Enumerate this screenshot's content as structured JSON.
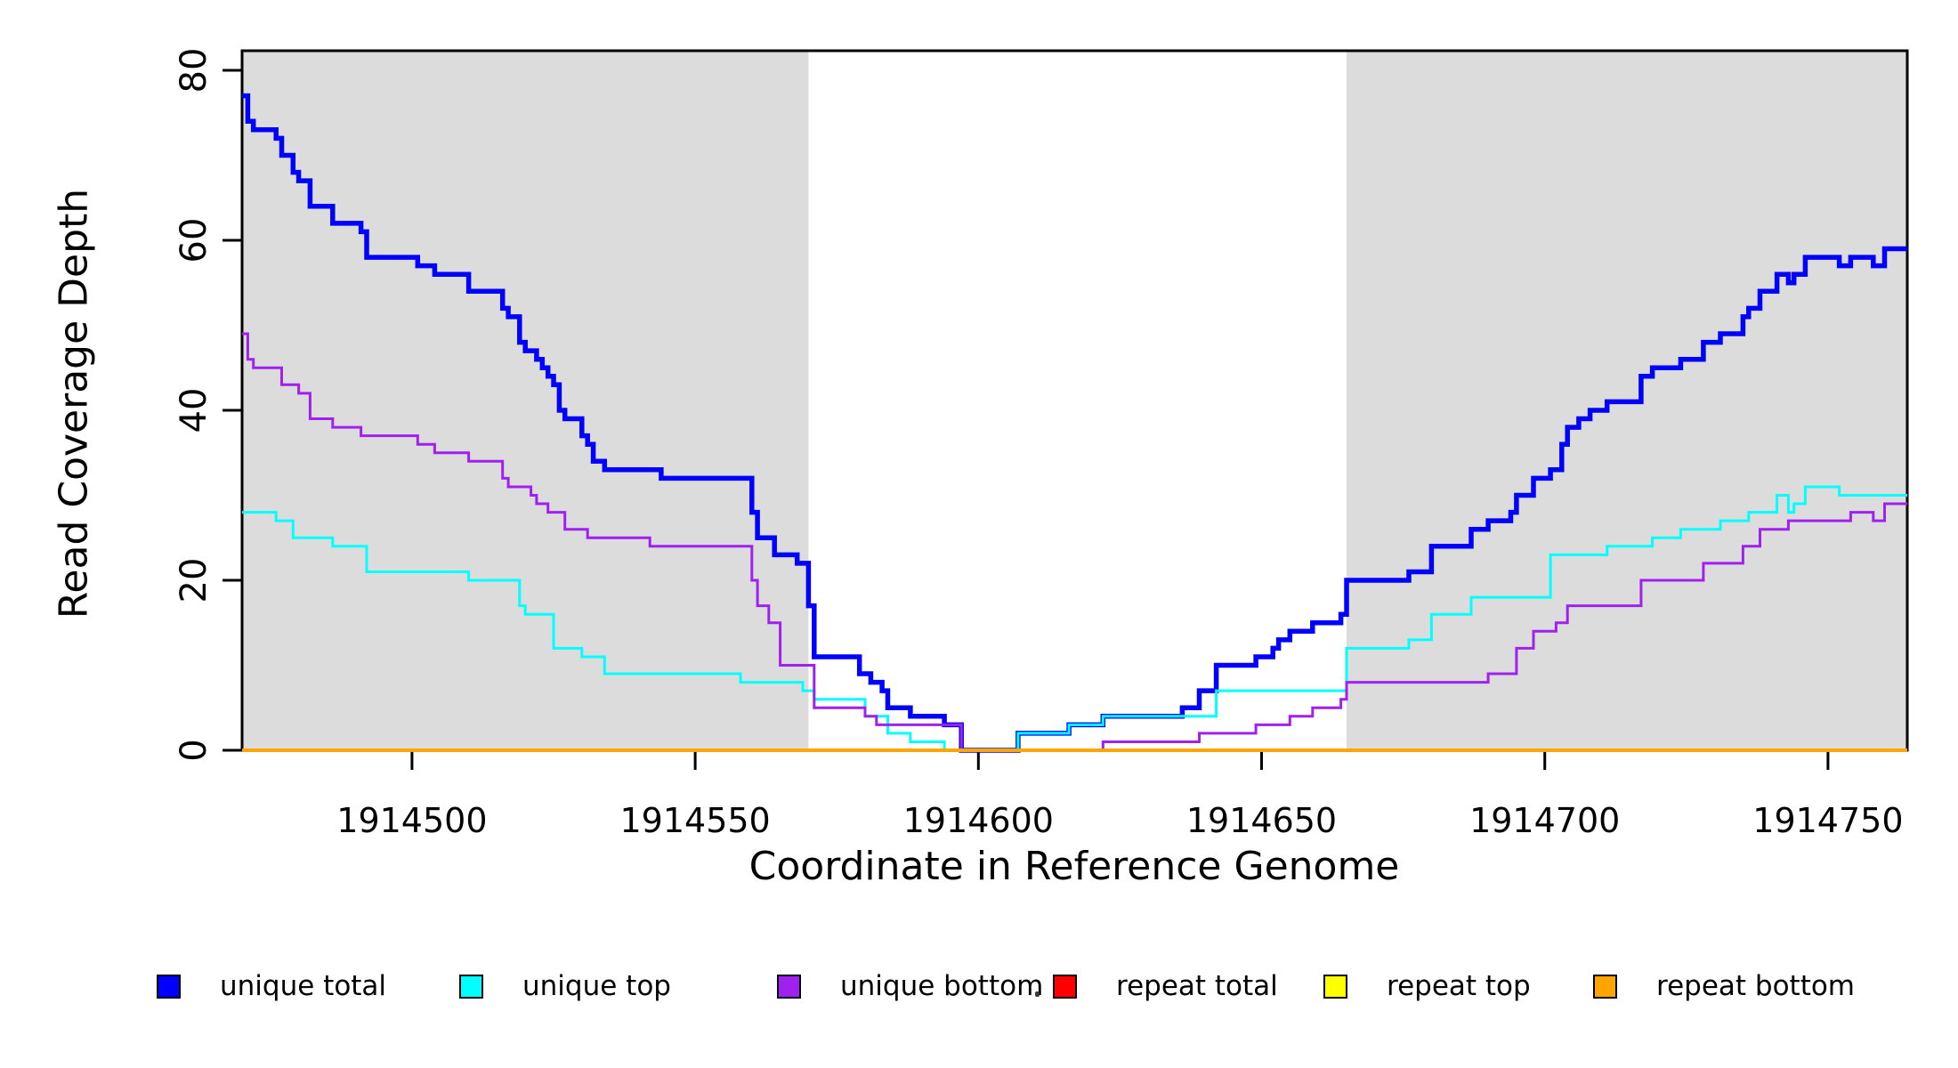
{
  "chart_data": {
    "type": "line",
    "subtype": "step-coverage",
    "title": "",
    "xlabel": "Coordinate in Reference Genome",
    "ylabel": "Read Coverage Depth",
    "xlim": [
      1914470,
      1914764
    ],
    "ylim": [
      0,
      82
    ],
    "grid": false,
    "legend_position": "bottom",
    "x_ticks": [
      1914500,
      1914550,
      1914600,
      1914650,
      1914700,
      1914750
    ],
    "x_tick_labels": [
      "1914500",
      "1914550",
      "1914600",
      "1914650",
      "1914700",
      "1914750"
    ],
    "y_ticks": [
      0,
      20,
      40,
      60,
      80
    ],
    "y_tick_labels": [
      "0",
      "20",
      "40",
      "60",
      "80"
    ],
    "background_color": "#ffffff",
    "shaded_region_color": "#dcdcdc",
    "shaded_regions": [
      {
        "x0": 1914470,
        "x1": 1914570
      },
      {
        "x0": 1914665,
        "x1": 1914764
      }
    ],
    "series": [
      {
        "name": "unique total",
        "color": "#0000ff",
        "width": 5.5,
        "steps": [
          [
            1914470,
            77
          ],
          [
            1914471,
            74
          ],
          [
            1914472,
            73
          ],
          [
            1914476,
            72
          ],
          [
            1914477,
            70
          ],
          [
            1914479,
            68
          ],
          [
            1914480,
            67
          ],
          [
            1914482,
            64
          ],
          [
            1914486,
            62
          ],
          [
            1914491,
            61
          ],
          [
            1914492,
            58
          ],
          [
            1914501,
            57
          ],
          [
            1914504,
            56
          ],
          [
            1914510,
            54
          ],
          [
            1914516,
            52
          ],
          [
            1914517,
            51
          ],
          [
            1914519,
            48
          ],
          [
            1914520,
            47
          ],
          [
            1914522,
            46
          ],
          [
            1914523,
            45
          ],
          [
            1914524,
            44
          ],
          [
            1914525,
            43
          ],
          [
            1914526,
            40
          ],
          [
            1914527,
            39
          ],
          [
            1914530,
            37
          ],
          [
            1914531,
            36
          ],
          [
            1914532,
            34
          ],
          [
            1914534,
            33
          ],
          [
            1914544,
            32
          ],
          [
            1914560,
            28
          ],
          [
            1914561,
            25
          ],
          [
            1914564,
            23
          ],
          [
            1914568,
            22
          ],
          [
            1914570,
            17
          ],
          [
            1914571,
            11
          ],
          [
            1914579,
            9
          ],
          [
            1914581,
            8
          ],
          [
            1914583,
            7
          ],
          [
            1914584,
            5
          ],
          [
            1914588,
            4
          ],
          [
            1914594,
            3
          ],
          [
            1914597,
            0
          ],
          [
            1914607,
            2
          ],
          [
            1914616,
            3
          ],
          [
            1914622,
            4
          ],
          [
            1914636,
            5
          ],
          [
            1914639,
            7
          ],
          [
            1914642,
            10
          ],
          [
            1914649,
            11
          ],
          [
            1914652,
            12
          ],
          [
            1914653,
            13
          ],
          [
            1914655,
            14
          ],
          [
            1914659,
            15
          ],
          [
            1914664,
            16
          ],
          [
            1914665,
            20
          ],
          [
            1914676,
            21
          ],
          [
            1914680,
            24
          ],
          [
            1914687,
            26
          ],
          [
            1914690,
            27
          ],
          [
            1914694,
            28
          ],
          [
            1914695,
            30
          ],
          [
            1914698,
            32
          ],
          [
            1914701,
            33
          ],
          [
            1914703,
            36
          ],
          [
            1914704,
            38
          ],
          [
            1914706,
            39
          ],
          [
            1914708,
            40
          ],
          [
            1914711,
            41
          ],
          [
            1914717,
            44
          ],
          [
            1914719,
            45
          ],
          [
            1914724,
            46
          ],
          [
            1914728,
            48
          ],
          [
            1914731,
            49
          ],
          [
            1914735,
            51
          ],
          [
            1914736,
            52
          ],
          [
            1914738,
            54
          ],
          [
            1914741,
            56
          ],
          [
            1914743,
            55
          ],
          [
            1914744,
            56
          ],
          [
            1914746,
            58
          ],
          [
            1914752,
            57
          ],
          [
            1914754,
            58
          ],
          [
            1914758,
            57
          ],
          [
            1914760,
            59
          ]
        ]
      },
      {
        "name": "unique top",
        "color": "#00ffff",
        "width": 3,
        "steps": [
          [
            1914470,
            28
          ],
          [
            1914476,
            27
          ],
          [
            1914479,
            25
          ],
          [
            1914486,
            24
          ],
          [
            1914492,
            21
          ],
          [
            1914510,
            20
          ],
          [
            1914519,
            17
          ],
          [
            1914520,
            16
          ],
          [
            1914525,
            12
          ],
          [
            1914530,
            11
          ],
          [
            1914534,
            9
          ],
          [
            1914558,
            8
          ],
          [
            1914569,
            7
          ],
          [
            1914571,
            6
          ],
          [
            1914580,
            4
          ],
          [
            1914584,
            2
          ],
          [
            1914588,
            1
          ],
          [
            1914594,
            0
          ],
          [
            1914607,
            2
          ],
          [
            1914616,
            3
          ],
          [
            1914622,
            4
          ],
          [
            1914642,
            7
          ],
          [
            1914665,
            12
          ],
          [
            1914676,
            13
          ],
          [
            1914680,
            16
          ],
          [
            1914687,
            18
          ],
          [
            1914701,
            23
          ],
          [
            1914711,
            24
          ],
          [
            1914719,
            25
          ],
          [
            1914724,
            26
          ],
          [
            1914731,
            27
          ],
          [
            1914736,
            28
          ],
          [
            1914741,
            30
          ],
          [
            1914743,
            28
          ],
          [
            1914744,
            29
          ],
          [
            1914746,
            31
          ],
          [
            1914752,
            30
          ]
        ]
      },
      {
        "name": "unique bottom",
        "color": "#a020f0",
        "width": 3,
        "steps": [
          [
            1914470,
            49
          ],
          [
            1914471,
            46
          ],
          [
            1914472,
            45
          ],
          [
            1914477,
            43
          ],
          [
            1914480,
            42
          ],
          [
            1914482,
            39
          ],
          [
            1914486,
            38
          ],
          [
            1914491,
            37
          ],
          [
            1914501,
            36
          ],
          [
            1914504,
            35
          ],
          [
            1914510,
            34
          ],
          [
            1914516,
            32
          ],
          [
            1914517,
            31
          ],
          [
            1914521,
            30
          ],
          [
            1914522,
            29
          ],
          [
            1914524,
            28
          ],
          [
            1914527,
            26
          ],
          [
            1914531,
            25
          ],
          [
            1914542,
            24
          ],
          [
            1914560,
            20
          ],
          [
            1914561,
            17
          ],
          [
            1914563,
            15
          ],
          [
            1914565,
            10
          ],
          [
            1914571,
            5
          ],
          [
            1914580,
            4
          ],
          [
            1914582,
            3
          ],
          [
            1914597,
            0
          ],
          [
            1914622,
            1
          ],
          [
            1914639,
            2
          ],
          [
            1914649,
            3
          ],
          [
            1914655,
            4
          ],
          [
            1914659,
            5
          ],
          [
            1914664,
            6
          ],
          [
            1914665,
            8
          ],
          [
            1914690,
            9
          ],
          [
            1914695,
            12
          ],
          [
            1914698,
            14
          ],
          [
            1914702,
            15
          ],
          [
            1914704,
            17
          ],
          [
            1914717,
            20
          ],
          [
            1914728,
            22
          ],
          [
            1914735,
            24
          ],
          [
            1914738,
            26
          ],
          [
            1914743,
            27
          ],
          [
            1914754,
            28
          ],
          [
            1914758,
            27
          ],
          [
            1914760,
            29
          ]
        ]
      },
      {
        "name": "repeat total",
        "color": "#ff0000",
        "width": 3.5,
        "steps": [
          [
            1914470,
            0
          ]
        ]
      },
      {
        "name": "repeat top",
        "color": "#ffff00",
        "width": 3.5,
        "steps": [
          [
            1914470,
            0
          ]
        ]
      },
      {
        "name": "repeat bottom",
        "color": "#ffa500",
        "width": 4,
        "steps": [
          [
            1914470,
            0
          ]
        ]
      }
    ]
  },
  "legend": {
    "items": [
      {
        "label": "unique total",
        "color": "#0000ff"
      },
      {
        "label": "unique top",
        "color": "#00ffff"
      },
      {
        "label": "unique bottom",
        "color": "#a020f0"
      },
      {
        "label": "repeat total",
        "color": "#ff0000"
      },
      {
        "label": "repeat top",
        "color": "#ffff00"
      },
      {
        "label": "repeat bottom",
        "color": "#ffa500"
      }
    ]
  }
}
